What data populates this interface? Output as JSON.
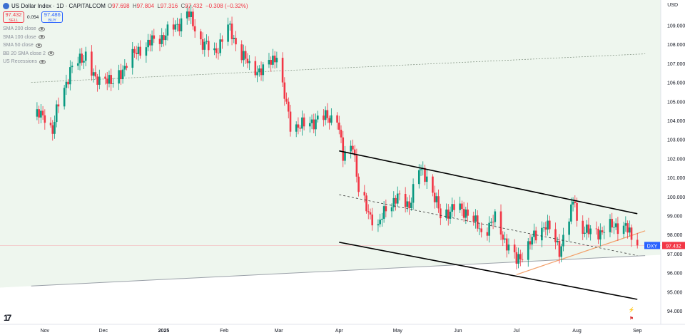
{
  "legend": {
    "flag_icon": "us-flag-icon",
    "title": "US Dollar Index · 1D · CAPITALCOM",
    "open_label": "O",
    "open": "97.698",
    "high_label": "H",
    "high": "97.804",
    "low_label": "L",
    "low": "97.316",
    "close_label": "C",
    "close": "97.432",
    "change": "−0.308 (−0.32%)"
  },
  "trade": {
    "sell_price": "97.432",
    "sell_label": "SELL",
    "spread": "0.054",
    "buy_price": "97.486",
    "buy_label": "BUY"
  },
  "indicators": [
    "SMA 200 close",
    "SMA 100 close",
    "SMA 50 close",
    "BB 20 SMA close 2",
    "US Recessions"
  ],
  "currency": "USD",
  "symbol_tag": "DXY",
  "price_tag": "97.432",
  "colors": {
    "up": "#089981",
    "down": "#f23645",
    "bg_band": "#eef6ee",
    "channel": "#000000",
    "trend_orange": "#f2a06a"
  },
  "chart_data": {
    "type": "candlestick",
    "symbol": "US Dollar Index",
    "interval": "1D",
    "source": "CAPITALCOM",
    "y_ticks": [
      "94.000",
      "95.000",
      "96.000",
      "97.000",
      "98.000",
      "99.000",
      "100.000",
      "101.000",
      "102.000",
      "103.000",
      "104.000",
      "105.000",
      "106.000",
      "107.000",
      "108.000",
      "109.000"
    ],
    "x_ticks": [
      "Nov",
      "Dec",
      "2025",
      "Feb",
      "Mar",
      "Apr",
      "May",
      "Jun",
      "Jul",
      "Aug",
      "Sep"
    ],
    "ylim": [
      93.8,
      109.8
    ],
    "last_price": 97.432,
    "close_path": [
      [
        "2024-10-25",
        104.2
      ],
      [
        "2024-11-01",
        104.3
      ],
      [
        "2024-11-05",
        103.4
      ],
      [
        "2024-11-08",
        104.9
      ],
      [
        "2024-11-14",
        106.6
      ],
      [
        "2024-11-22",
        107.5
      ],
      [
        "2024-11-27",
        106.0
      ],
      [
        "2024-12-02",
        106.4
      ],
      [
        "2024-12-06",
        105.8
      ],
      [
        "2024-12-12",
        106.9
      ],
      [
        "2024-12-20",
        107.8
      ],
      [
        "2024-12-31",
        108.4
      ],
      [
        "2025-01-08",
        109.0
      ],
      [
        "2025-01-13",
        109.7
      ],
      [
        "2025-01-20",
        108.2
      ],
      [
        "2025-01-27",
        107.5
      ],
      [
        "2025-02-03",
        108.9
      ],
      [
        "2025-02-07",
        108.1
      ],
      [
        "2025-02-14",
        106.8
      ],
      [
        "2025-02-21",
        106.6
      ],
      [
        "2025-02-28",
        107.5
      ],
      [
        "2025-03-03",
        105.7
      ],
      [
        "2025-03-07",
        103.8
      ],
      [
        "2025-03-14",
        103.7
      ],
      [
        "2025-03-21",
        104.1
      ],
      [
        "2025-03-31",
        104.2
      ],
      [
        "2025-04-03",
        102.0
      ],
      [
        "2025-04-08",
        102.9
      ],
      [
        "2025-04-11",
        100.2
      ],
      [
        "2025-04-21",
        98.3
      ],
      [
        "2025-04-25",
        99.5
      ],
      [
        "2025-05-01",
        99.9
      ],
      [
        "2025-05-07",
        99.6
      ],
      [
        "2025-05-12",
        101.4
      ],
      [
        "2025-05-16",
        101.1
      ],
      [
        "2025-05-23",
        99.0
      ],
      [
        "2025-05-30",
        99.4
      ],
      [
        "2025-06-06",
        99.2
      ],
      [
        "2025-06-13",
        98.1
      ],
      [
        "2025-06-20",
        98.8
      ],
      [
        "2025-06-27",
        97.3
      ],
      [
        "2025-07-01",
        96.6
      ],
      [
        "2025-07-08",
        97.6
      ],
      [
        "2025-07-16",
        98.6
      ],
      [
        "2025-07-23",
        97.2
      ],
      [
        "2025-07-31",
        99.9
      ],
      [
        "2025-08-01",
        98.6
      ],
      [
        "2025-08-07",
        98.1
      ],
      [
        "2025-08-14",
        98.2
      ],
      [
        "2025-08-21",
        98.5
      ],
      [
        "2025-08-26",
        98.4
      ],
      [
        "2025-08-29",
        97.8
      ],
      [
        "2025-09-01",
        97.432
      ]
    ],
    "channel": {
      "upper": [
        [
          "2025-04-01",
          102.4
        ],
        [
          "2025-09-01",
          99.1
        ]
      ],
      "middle": [
        [
          "2025-04-01",
          100.1
        ],
        [
          "2025-09-01",
          96.9
        ]
      ],
      "lower": [
        [
          "2025-04-01",
          97.6
        ],
        [
          "2025-09-01",
          94.6
        ]
      ]
    },
    "trendlines": {
      "orange_support": [
        [
          "2025-07-01",
          95.9
        ],
        [
          "2025-09-05",
          98.2
        ]
      ],
      "gray_long": [
        [
          "2024-10-25",
          95.3
        ],
        [
          "2025-09-05",
          96.9
        ]
      ],
      "gray_dotted": [
        [
          "2024-10-25",
          106.0
        ],
        [
          "2025-09-05",
          107.5
        ]
      ]
    },
    "grid": false
  }
}
